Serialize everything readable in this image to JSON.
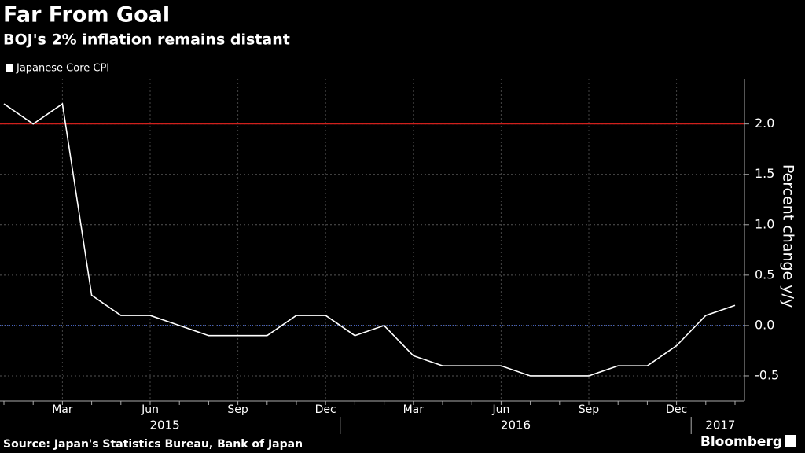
{
  "chart_data": {
    "type": "line",
    "title": "Far From Goal",
    "subtitle": "BOJ's 2% inflation remains distant",
    "y_label": "Percent change y/y",
    "source": "Source: Japan's Statistics Bureau, Bank of Japan",
    "brand": "Bloomberg",
    "categories": [
      null,
      null,
      "Mar",
      null,
      null,
      "Jun",
      null,
      null,
      "Sep",
      null,
      null,
      "Dec",
      null,
      null,
      "Mar",
      null,
      null,
      "Jun",
      null,
      null,
      "Sep",
      null,
      null,
      "Dec",
      null,
      null
    ],
    "years": [
      "2015",
      "2016",
      "2017"
    ],
    "series": [
      {
        "name": "Japanese Core CPI",
        "color": "#ffffff",
        "values": [
          2.2,
          2.0,
          2.2,
          0.3,
          0.1,
          0.1,
          0.0,
          -0.1,
          -0.1,
          -0.1,
          0.1,
          0.1,
          -0.1,
          0.0,
          -0.3,
          -0.4,
          -0.4,
          -0.4,
          -0.5,
          -0.5,
          -0.5,
          -0.4,
          -0.4,
          -0.2,
          0.1,
          0.2
        ]
      }
    ],
    "reference_lines": [
      {
        "value": 2.0,
        "color": "#d0201c",
        "style": "solid"
      },
      {
        "value": 0,
        "color": "#4f6fd8",
        "style": "dotted"
      }
    ],
    "ylim": [
      -0.75,
      2.45
    ],
    "yticks": [
      -0.5,
      {
        "value": 0,
        "label": "0.0"
      },
      0.5,
      {
        "value": 1,
        "label": "1.0"
      },
      1.5,
      {
        "value": 2,
        "label": "2.0"
      }
    ],
    "grid": true
  }
}
